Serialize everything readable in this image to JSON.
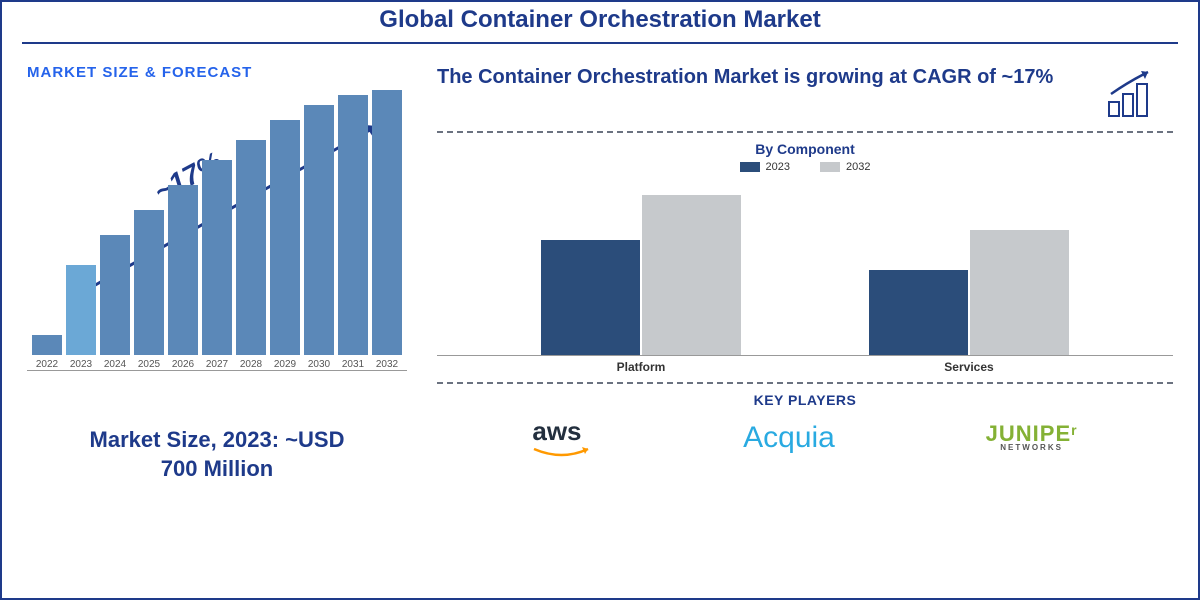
{
  "title": "Global Container Orchestration Market",
  "left": {
    "section_label": "MARKET SIZE & FORECAST",
    "cagr_label": "~17%",
    "market_size_line1": "Market Size, 2023: ~USD",
    "market_size_line2": "700 Million",
    "forecast_chart": {
      "type": "bar",
      "years": [
        "2022",
        "2023",
        "2024",
        "2025",
        "2026",
        "2027",
        "2028",
        "2029",
        "2030",
        "2031",
        "2032"
      ],
      "values": [
        20,
        90,
        120,
        145,
        170,
        195,
        215,
        235,
        250,
        260,
        265
      ],
      "max_height": 270,
      "bar_colors": [
        "#5b88b8",
        "#6ba8d6",
        "#5b88b8",
        "#5b88b8",
        "#5b88b8",
        "#5b88b8",
        "#5b88b8",
        "#5b88b8",
        "#5b88b8",
        "#5b88b8",
        "#5b88b8"
      ],
      "label_color": "#555555",
      "label_fontsize": 10,
      "arrow_color": "#1e3a8a"
    }
  },
  "right": {
    "headline": "The Container Orchestration Market is growing at CAGR of ~17%",
    "component": {
      "title": "By Component",
      "legend": [
        {
          "label": "2023",
          "color": "#2b4d7a"
        },
        {
          "label": "2032",
          "color": "#c6c9cc"
        }
      ],
      "groups": [
        {
          "name": "Platform",
          "v2023": 115,
          "v2032": 160
        },
        {
          "name": "Services",
          "v2023": 85,
          "v2032": 125
        }
      ],
      "max_height": 170,
      "color_2023": "#2b4d7a",
      "color_2032": "#c6c9cc"
    },
    "key_players_title": "KEY PLAYERS",
    "logos": {
      "aws": "aws",
      "acquia": "Acquia",
      "juniper": "JUNIPE",
      "juniper_r": "r",
      "juniper_sub": "NETWORKS"
    }
  },
  "colors": {
    "primary": "#1e3a8a",
    "accent_blue": "#2563eb",
    "dash": "#6b7280"
  }
}
